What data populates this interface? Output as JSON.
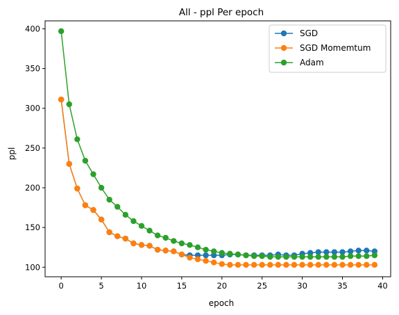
{
  "chart_data": {
    "type": "line",
    "title": "All - ppl Per epoch",
    "xlabel": "epoch",
    "ylabel": "ppl",
    "xlim": [
      -2,
      41
    ],
    "ylim": [
      88,
      410
    ],
    "xticks": [
      0,
      5,
      10,
      15,
      20,
      25,
      30,
      35,
      40
    ],
    "yticks": [
      100,
      150,
      200,
      250,
      300,
      350,
      400
    ],
    "grid": false,
    "legend_position": "top-right",
    "x": [
      0,
      1,
      2,
      3,
      4,
      5,
      6,
      7,
      8,
      9,
      10,
      11,
      12,
      13,
      14,
      15,
      16,
      17,
      18,
      19,
      20,
      21,
      22,
      23,
      24,
      25,
      26,
      27,
      28,
      29,
      30,
      31,
      32,
      33,
      34,
      35,
      36,
      37,
      38,
      39
    ],
    "series": [
      {
        "name": "SGD",
        "color": "#1f77b4",
        "values": [
          311,
          230,
          199,
          178,
          172,
          160,
          144,
          139,
          136,
          130,
          128,
          127,
          122,
          121,
          120,
          116,
          115,
          115,
          115,
          115,
          115,
          116,
          116,
          115,
          115,
          115,
          115,
          116,
          115,
          115,
          117,
          118,
          119,
          119,
          119,
          119,
          120,
          121,
          121,
          120
        ]
      },
      {
        "name": "SGD Momemtum",
        "color": "#ff7f0e",
        "values": [
          311,
          230,
          199,
          178,
          172,
          160,
          144,
          139,
          136,
          130,
          128,
          127,
          122,
          121,
          120,
          116,
          112,
          110,
          108,
          106,
          104,
          103,
          103,
          103,
          103,
          103,
          103,
          103,
          103,
          103,
          103,
          103,
          103,
          103,
          103,
          103,
          103,
          103,
          103,
          103
        ]
      },
      {
        "name": "Adam",
        "color": "#2ca02c",
        "values": [
          397,
          305,
          261,
          234,
          217,
          200,
          185,
          176,
          166,
          158,
          152,
          146,
          140,
          137,
          133,
          130,
          128,
          125,
          122,
          120,
          118,
          117,
          116,
          115,
          114,
          114,
          113,
          113,
          113,
          113,
          113,
          113,
          113,
          113,
          113,
          113,
          114,
          114,
          114,
          115
        ]
      }
    ]
  }
}
